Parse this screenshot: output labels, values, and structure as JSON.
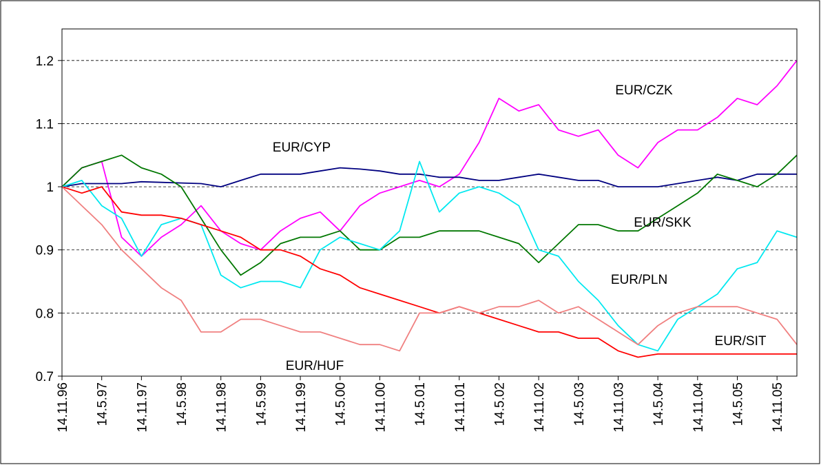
{
  "chart_data": {
    "type": "line",
    "categories": [
      "14.11.96",
      null,
      "14.5.97",
      null,
      "14.11.97",
      null,
      "14.5.98",
      null,
      "14.11.98",
      null,
      "14.5.99",
      null,
      "14.11.99",
      null,
      "14.5.00",
      null,
      "14.11.00",
      null,
      "14.5.01",
      null,
      "14.11.01",
      null,
      "14.5.02",
      null,
      "14.11.02",
      null,
      "14.5.03",
      null,
      "14.11.03",
      null,
      "14.5.04",
      null,
      "14.11.04",
      null,
      "14.5.05",
      null,
      "14.11.05",
      null
    ],
    "series": [
      {
        "name": "EUR/CZK",
        "color": "#ff00ff",
        "values": [
          1.0,
          1.03,
          1.04,
          0.92,
          0.89,
          0.92,
          0.94,
          0.97,
          0.93,
          0.91,
          0.9,
          0.93,
          0.95,
          0.96,
          0.93,
          0.97,
          0.99,
          1.0,
          1.01,
          1.0,
          1.02,
          1.07,
          1.14,
          1.12,
          1.13,
          1.09,
          1.08,
          1.09,
          1.05,
          1.03,
          1.07,
          1.09,
          1.09,
          1.11,
          1.14,
          1.13,
          1.16,
          1.2
        ]
      },
      {
        "name": "EUR/CYP",
        "color": "#000080",
        "values": [
          1.0,
          1.005,
          1.005,
          1.005,
          1.008,
          1.007,
          1.006,
          1.005,
          1.0,
          1.01,
          1.02,
          1.02,
          1.02,
          1.025,
          1.03,
          1.028,
          1.025,
          1.02,
          1.02,
          1.015,
          1.015,
          1.01,
          1.01,
          1.015,
          1.02,
          1.015,
          1.01,
          1.01,
          1.0,
          1.0,
          1.0,
          1.005,
          1.01,
          1.015,
          1.01,
          1.02,
          1.02,
          1.02
        ]
      },
      {
        "name": "EUR/SKK",
        "color": "#007700",
        "values": [
          1.0,
          1.03,
          1.04,
          1.05,
          1.03,
          1.02,
          1.0,
          0.95,
          0.9,
          0.86,
          0.88,
          0.91,
          0.92,
          0.92,
          0.93,
          0.9,
          0.9,
          0.92,
          0.92,
          0.93,
          0.93,
          0.93,
          0.92,
          0.91,
          0.88,
          0.91,
          0.94,
          0.94,
          0.93,
          0.93,
          0.95,
          0.97,
          0.99,
          1.02,
          1.01,
          1.0,
          1.02,
          1.05
        ]
      },
      {
        "name": "EUR/PLN",
        "color": "#00e8f0",
        "values": [
          1.0,
          1.01,
          0.97,
          0.95,
          0.89,
          0.94,
          0.95,
          0.94,
          0.86,
          0.84,
          0.85,
          0.85,
          0.84,
          0.9,
          0.92,
          0.91,
          0.9,
          0.93,
          1.04,
          0.96,
          0.99,
          1.0,
          0.99,
          0.97,
          0.9,
          0.89,
          0.85,
          0.82,
          0.78,
          0.75,
          0.74,
          0.79,
          0.81,
          0.83,
          0.87,
          0.88,
          0.93,
          0.92
        ]
      },
      {
        "name": "EUR/SIT",
        "color": "#ff0000",
        "values": [
          1.0,
          0.99,
          1.0,
          0.96,
          0.955,
          0.955,
          0.95,
          0.94,
          0.93,
          0.92,
          0.9,
          0.9,
          0.89,
          0.87,
          0.86,
          0.84,
          0.83,
          0.82,
          0.81,
          0.8,
          0.81,
          0.8,
          0.79,
          0.78,
          0.77,
          0.77,
          0.76,
          0.76,
          0.74,
          0.73,
          0.735,
          0.735,
          0.735,
          0.735,
          0.735,
          0.735,
          0.735,
          0.735
        ]
      },
      {
        "name": "EUR/HUF",
        "color": "#f08080",
        "values": [
          1.0,
          0.97,
          0.94,
          0.9,
          0.87,
          0.84,
          0.82,
          0.77,
          0.77,
          0.79,
          0.79,
          0.78,
          0.77,
          0.77,
          0.76,
          0.75,
          0.75,
          0.74,
          0.8,
          0.8,
          0.81,
          0.8,
          0.81,
          0.81,
          0.82,
          0.8,
          0.81,
          0.79,
          0.77,
          0.75,
          0.78,
          0.8,
          0.81,
          0.81,
          0.81,
          0.8,
          0.79,
          0.75
        ]
      }
    ],
    "ylim": [
      0.7,
      1.25
    ],
    "yticks": [
      0.7,
      0.8,
      0.9,
      1,
      1.1,
      1.2
    ],
    "grid": true
  }
}
